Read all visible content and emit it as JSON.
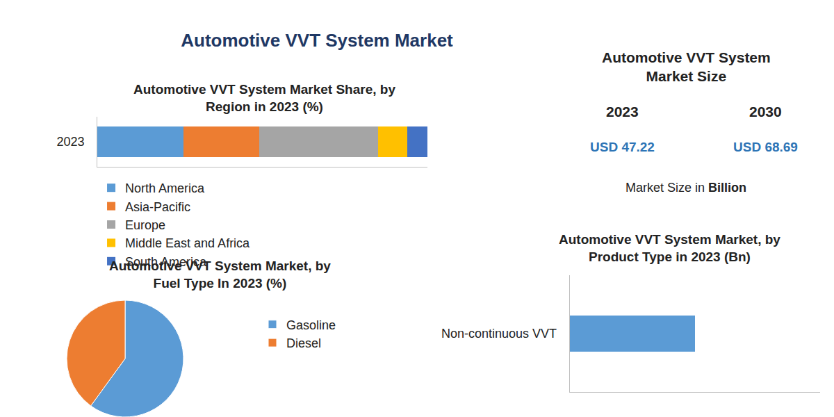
{
  "title": "Automotive VVT System Market",
  "market_size": {
    "title": "Automotive VVT System\nMarket Size",
    "years": [
      2023,
      2030
    ],
    "currency": "USD",
    "values": [
      47.22,
      68.69
    ],
    "note": "Market Size in",
    "unit": "Billion"
  },
  "chart_data": [
    {
      "type": "bar",
      "title": "Automotive VVT System Market Share, by\nRegion in 2023 (%)",
      "orientation": "horizontal",
      "stacked": true,
      "categories": [
        "2023"
      ],
      "series": [
        {
          "name": "North America",
          "color": "#5B9BD5",
          "values": [
            26
          ]
        },
        {
          "name": "Asia-Pacific",
          "color": "#ED7D31",
          "values": [
            23
          ]
        },
        {
          "name": "Europe",
          "color": "#A5A5A5",
          "values": [
            36
          ]
        },
        {
          "name": "Middle East and Africa",
          "color": "#FFC000",
          "values": [
            9
          ]
        },
        {
          "name": "South America",
          "color": "#4472C4",
          "values": [
            6
          ]
        }
      ],
      "xlim": [
        0,
        100
      ],
      "legend": "bottom",
      "tick_labels": "y"
    },
    {
      "type": "pie",
      "title": "Automotive VVT System Market, by\nFuel Type In 2023 (%)",
      "categories": [
        "Gasoline",
        "Diesel"
      ],
      "values": [
        60,
        40
      ],
      "colors": [
        "#5B9BD5",
        "#ED7D31"
      ],
      "legend": "right"
    },
    {
      "type": "bar",
      "title": "Automotive VVT System Market, by\nProduct Type in 2023 (Bn)",
      "orientation": "horizontal",
      "categories": [
        "Non-continuous VVT"
      ],
      "values": [
        18
      ],
      "color": "#5B9BD5",
      "xlim": [
        0,
        36
      ],
      "tick_labels": "y"
    }
  ]
}
